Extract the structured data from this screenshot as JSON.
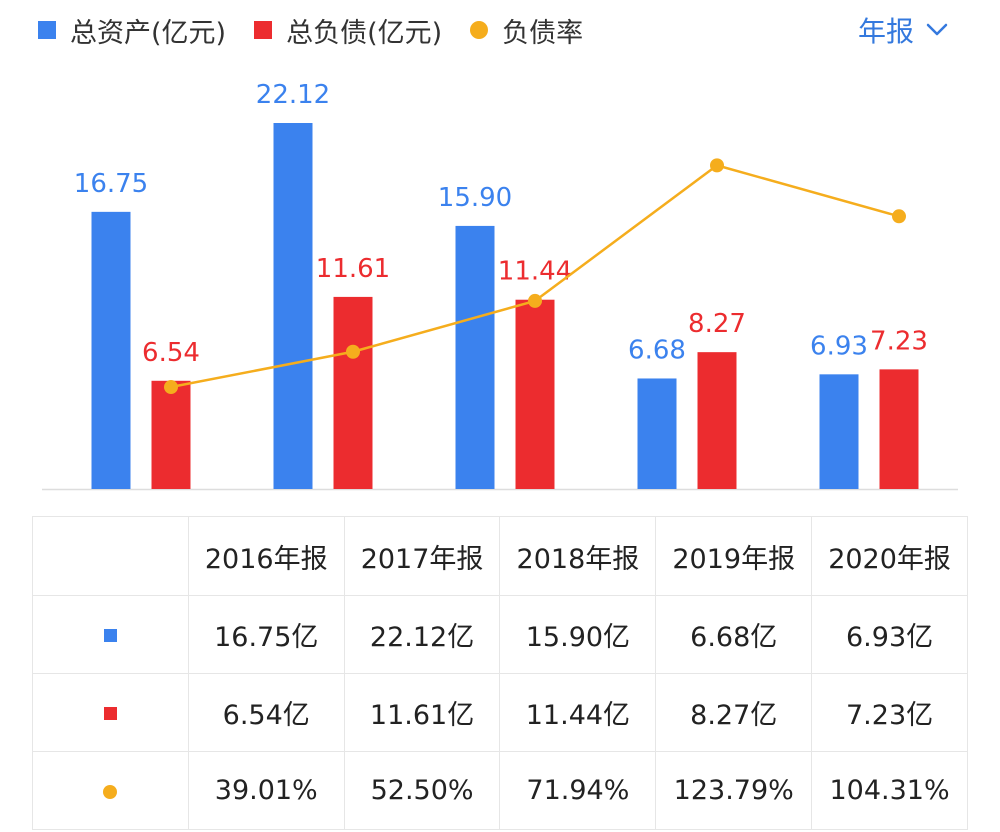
{
  "legend": {
    "assets_label": "总资产(亿元)",
    "liabilities_label": "总负债(亿元)",
    "ratio_label": "负债率"
  },
  "period_selector": {
    "label": "年报"
  },
  "colors": {
    "assets": "#3b82ee",
    "liabilities": "#ec2c2f",
    "ratio": "#f5ad1d",
    "accent": "#3479de"
  },
  "chart_data": {
    "type": "bar",
    "categories": [
      "2016年报",
      "2017年报",
      "2018年报",
      "2019年报",
      "2020年报"
    ],
    "series": [
      {
        "name": "总资产(亿元)",
        "type": "bar",
        "values": [
          16.75,
          22.12,
          15.9,
          6.68,
          6.93
        ],
        "labels": [
          "16.75",
          "22.12",
          "15.90",
          "6.68",
          "6.93"
        ]
      },
      {
        "name": "总负债(亿元)",
        "type": "bar",
        "values": [
          6.54,
          11.61,
          11.44,
          8.27,
          7.23
        ],
        "labels": [
          "6.54",
          "11.61",
          "11.44",
          "8.27",
          "7.23"
        ]
      },
      {
        "name": "负债率",
        "type": "line",
        "values": [
          39.01,
          52.5,
          71.94,
          123.79,
          104.31
        ]
      }
    ],
    "ylim": [
      0,
      22.12
    ],
    "ratio_ylim": [
      0,
      140
    ]
  },
  "table": {
    "headers": [
      "2016年报",
      "2017年报",
      "2018年报",
      "2019年报",
      "2020年报"
    ],
    "rows": [
      {
        "key": "assets",
        "cells": [
          "16.75亿",
          "22.12亿",
          "15.90亿",
          "6.68亿",
          "6.93亿"
        ]
      },
      {
        "key": "liabilities",
        "cells": [
          "6.54亿",
          "11.61亿",
          "11.44亿",
          "8.27亿",
          "7.23亿"
        ]
      },
      {
        "key": "ratio",
        "cells": [
          "39.01%",
          "52.50%",
          "71.94%",
          "123.79%",
          "104.31%"
        ]
      }
    ]
  }
}
